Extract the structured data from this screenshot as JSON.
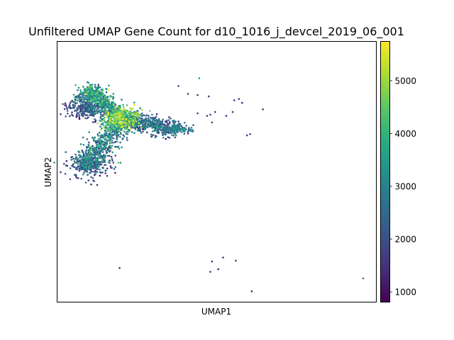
{
  "chart_data": {
    "type": "scatter",
    "title": "Unfiltered UMAP Gene Count for d10_1016_j_devcel_2019_06_001",
    "xlabel": "UMAP1",
    "ylabel": "UMAP2",
    "x_ticks_shown": false,
    "y_ticks_shown": false,
    "grid": false,
    "colormap": "viridis",
    "colorbar": {
      "min": 800,
      "max": 5750,
      "ticks": [
        1000,
        2000,
        3000,
        4000,
        5000
      ],
      "tick_labels": [
        "1000",
        "2000",
        "3000",
        "4000",
        "5000"
      ],
      "placement": "right"
    },
    "xlim": [
      0,
      100
    ],
    "ylim": [
      0,
      100
    ],
    "structure": {
      "cluster": "three-armed dense branching cluster in the upper-left quadrant with arms to the upper-left, left, lower-left and a long arm to the right",
      "high_count_region": "center of the branch junction",
      "low_count_region": "tips of the left and lower-left arms"
    },
    "clusters": [
      {
        "name": "junction",
        "center": [
          20,
          70.5
        ],
        "spread": [
          3.0,
          2.2
        ],
        "n": 380,
        "value_mean": 4300,
        "value_sd": 700
      },
      {
        "name": "upper-left-arm",
        "from": [
          9,
          81.5
        ],
        "to": [
          19,
          72
        ],
        "width": 1.6,
        "n": 360,
        "value_mean": 3200,
        "value_sd": 650
      },
      {
        "name": "upper-left-tip",
        "center": [
          11,
          79.5
        ],
        "spread": [
          2.6,
          2.4
        ],
        "n": 170,
        "value_mean": 3400,
        "value_sd": 700
      },
      {
        "name": "left-lobe",
        "center": [
          9.5,
          74.5
        ],
        "spread": [
          3.2,
          1.8
        ],
        "n": 320,
        "value_mean": 1900,
        "value_sd": 500
      },
      {
        "name": "lower-left-arm",
        "from": [
          19,
          68.5
        ],
        "to": [
          8.5,
          51.5
        ],
        "width": 2.2,
        "n": 520,
        "value_mean": 2800,
        "value_sd": 800
      },
      {
        "name": "lower-left-tip",
        "center": [
          9.5,
          53
        ],
        "spread": [
          3.4,
          2.6
        ],
        "n": 280,
        "value_mean": 2100,
        "value_sd": 550
      },
      {
        "name": "right-arm",
        "from": [
          21,
          70
        ],
        "to": [
          38,
          66
        ],
        "width": 1.7,
        "n": 520,
        "value_mean": 2300,
        "value_sd": 600
      },
      {
        "name": "right-tip",
        "center": [
          38,
          66.5
        ],
        "spread": [
          2.2,
          0.9
        ],
        "n": 90,
        "value_mean": 2700,
        "value_sd": 500
      }
    ],
    "outliers": [
      {
        "x": 44.5,
        "y": 86,
        "value": 3400
      },
      {
        "x": 38,
        "y": 83,
        "value": 1800
      },
      {
        "x": 41,
        "y": 80,
        "value": 1500
      },
      {
        "x": 44,
        "y": 79.5,
        "value": 1400
      },
      {
        "x": 47.5,
        "y": 79,
        "value": 1600
      },
      {
        "x": 55.5,
        "y": 77.5,
        "value": 1500
      },
      {
        "x": 57,
        "y": 78,
        "value": 1600
      },
      {
        "x": 58,
        "y": 76.5,
        "value": 1400
      },
      {
        "x": 64.5,
        "y": 74,
        "value": 1300
      },
      {
        "x": 44,
        "y": 72.5,
        "value": 1600
      },
      {
        "x": 48,
        "y": 72,
        "value": 1500
      },
      {
        "x": 49.5,
        "y": 73,
        "value": 1500
      },
      {
        "x": 47,
        "y": 71.5,
        "value": 1600
      },
      {
        "x": 53,
        "y": 71.5,
        "value": 1400
      },
      {
        "x": 55,
        "y": 73,
        "value": 1500
      },
      {
        "x": 48.5,
        "y": 69,
        "value": 1700
      },
      {
        "x": 59.5,
        "y": 64,
        "value": 1500
      },
      {
        "x": 60.5,
        "y": 64.5,
        "value": 1400
      },
      {
        "x": 52,
        "y": 17,
        "value": 1600
      },
      {
        "x": 48.5,
        "y": 15.5,
        "value": 1500
      },
      {
        "x": 56,
        "y": 15.8,
        "value": 1400
      },
      {
        "x": 50.5,
        "y": 12.5,
        "value": 1300
      },
      {
        "x": 48,
        "y": 11.5,
        "value": 1400
      },
      {
        "x": 19.5,
        "y": 13,
        "value": 1300
      },
      {
        "x": 61,
        "y": 4,
        "value": 1200
      },
      {
        "x": 96,
        "y": 9,
        "value": 2900
      }
    ]
  }
}
